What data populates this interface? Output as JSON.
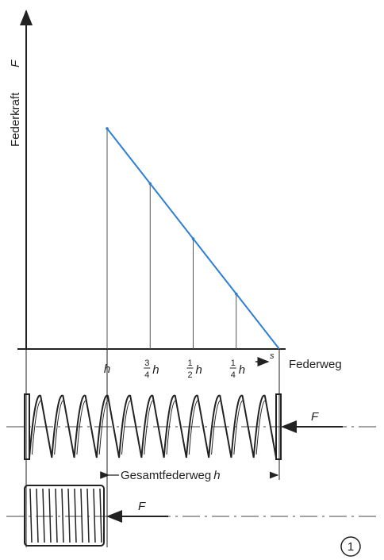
{
  "chart_data": {
    "type": "line",
    "ylabel": "Federkraft",
    "ylabel_symbol": "F",
    "xlabel": "Federweg",
    "xlabel_arrow_symbol": "s",
    "x_ticks": [
      {
        "label": "h",
        "value": 1.0
      },
      {
        "label": "3/4 h",
        "value": 0.75,
        "num": "3",
        "den": "4",
        "var": "h"
      },
      {
        "label": "1/2 h",
        "value": 0.5,
        "num": "1",
        "den": "2",
        "var": "h"
      },
      {
        "label": "1/4 h",
        "value": 0.25,
        "num": "1",
        "den": "4",
        "var": "h"
      }
    ],
    "series": [
      {
        "x": [
          1.0,
          0.75,
          0.5,
          0.25,
          0.0
        ],
        "y": [
          1.0,
          0.75,
          0.5,
          0.25,
          0.0
        ],
        "color": "#2f7fd0"
      }
    ],
    "xlim": [
      1.0,
      0.0
    ],
    "ylim": [
      0,
      1.0
    ]
  },
  "spring_diagram": {
    "force_symbol": "F",
    "total_travel_label": "Gesamtfederweg",
    "total_travel_symbol": "h",
    "compressed_force_symbol": "F"
  },
  "figure_number": "1"
}
